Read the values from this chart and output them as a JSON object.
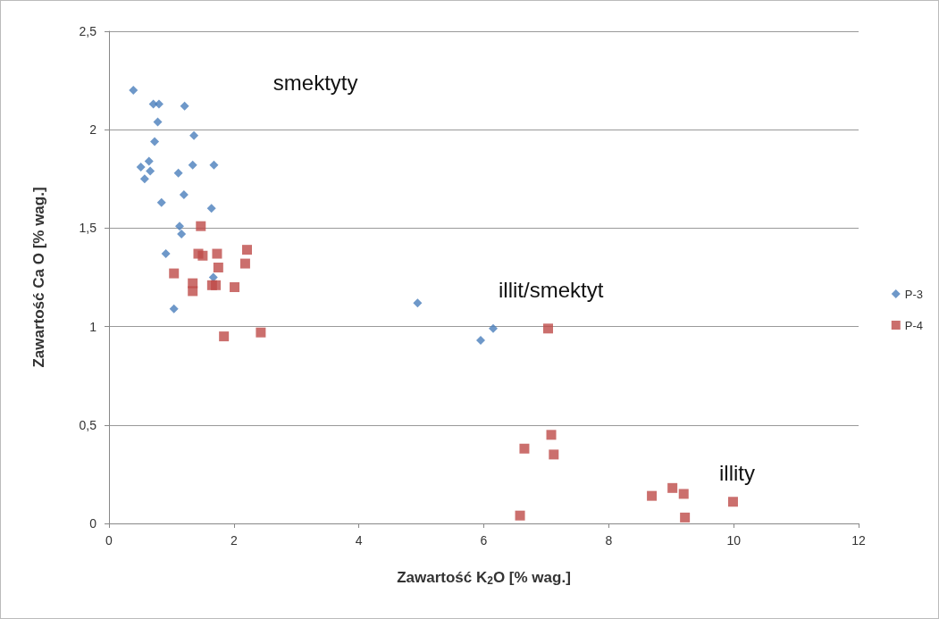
{
  "chart_data": {
    "type": "scatter",
    "xlabel": "Zawartość K$_{2}$O [% wag.]",
    "ylabel": "Zawartość Ca O [% wag.]",
    "xlim": [
      0,
      12
    ],
    "xticks": [
      0,
      2,
      4,
      6,
      8,
      10,
      12
    ],
    "ylim": [
      0,
      2.5
    ],
    "yticks": [
      0,
      {
        "value": 0.5,
        "label": "0,5"
      },
      1,
      {
        "value": 1.5,
        "label": "1,5"
      },
      2,
      {
        "value": 2.5,
        "label": "2,5"
      }
    ],
    "grid": "y",
    "legend": "right",
    "annotations": [
      "smektyty",
      "illit/smektyt",
      "illity"
    ],
    "series": [
      {
        "name": "P-3",
        "color": "#4a7ebb",
        "marker": "diamond",
        "x": [
          0.39,
          0.71,
          0.8,
          1.21,
          0.78,
          0.73,
          1.36,
          0.64,
          0.51,
          0.66,
          0.57,
          1.11,
          1.34,
          1.68,
          1.2,
          0.84,
          1.64,
          1.13,
          1.16,
          0.91,
          1.67,
          1.04,
          4.94,
          6.15,
          5.95
        ],
        "values": [
          2.2,
          2.13,
          2.13,
          2.12,
          2.04,
          1.94,
          1.97,
          1.84,
          1.81,
          1.79,
          1.75,
          1.78,
          1.82,
          1.82,
          1.67,
          1.63,
          1.6,
          1.51,
          1.47,
          1.37,
          1.25,
          1.09,
          1.12,
          0.99,
          0.93
        ]
      },
      {
        "name": "P-4",
        "color": "#be4b48",
        "marker": "square",
        "x": [
          1.47,
          1.43,
          1.5,
          1.73,
          2.21,
          2.18,
          1.04,
          1.75,
          1.34,
          1.34,
          1.65,
          1.71,
          2.01,
          1.84,
          2.43,
          7.03,
          7.08,
          6.65,
          7.12,
          6.58,
          8.69,
          9.02,
          9.2,
          9.22,
          9.99
        ],
        "values": [
          1.51,
          1.37,
          1.36,
          1.37,
          1.39,
          1.32,
          1.27,
          1.3,
          1.22,
          1.18,
          1.21,
          1.21,
          1.2,
          0.95,
          0.97,
          0.99,
          0.45,
          0.38,
          0.35,
          0.04,
          0.14,
          0.18,
          0.15,
          0.03,
          0.11
        ]
      }
    ]
  }
}
